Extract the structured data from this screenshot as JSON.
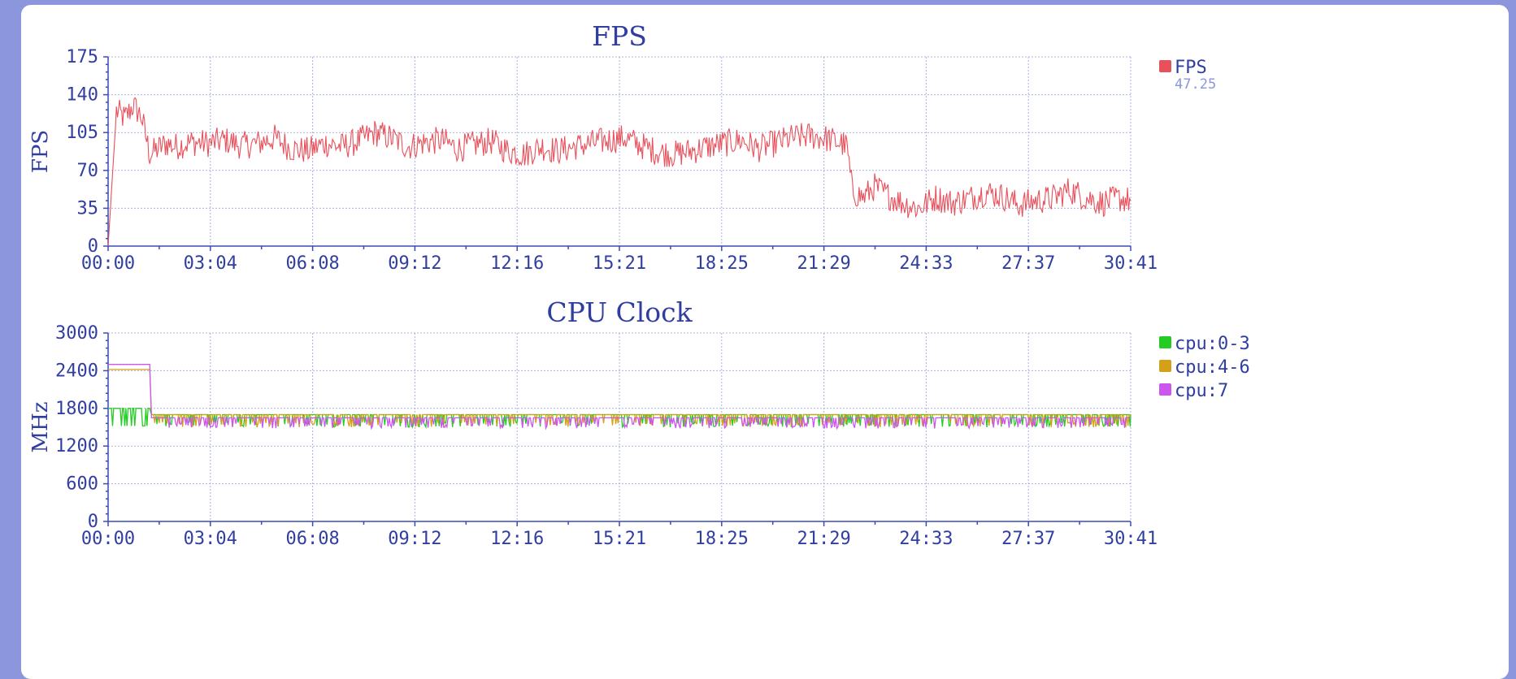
{
  "chart_data": [
    {
      "type": "line",
      "title": "FPS",
      "ylabel": "FPS",
      "xlabel": "",
      "x_ticks": [
        "00:00",
        "03:04",
        "06:08",
        "09:12",
        "12:16",
        "15:21",
        "18:25",
        "21:29",
        "24:33",
        "27:37",
        "30:41"
      ],
      "y_ticks": [
        "0",
        "35",
        "70",
        "105",
        "140",
        "175"
      ],
      "ylim": [
        0,
        175
      ],
      "xlim_seconds": [
        0,
        1841
      ],
      "grid": true,
      "legend_position": "right",
      "series": [
        {
          "name": "FPS",
          "color": "#e8505b",
          "legend_value": "47.25",
          "x": [
            0,
            15,
            30,
            45,
            60,
            75,
            90,
            105,
            120,
            150,
            180,
            210,
            240,
            270,
            300,
            330,
            360,
            390,
            420,
            450,
            480,
            510,
            540,
            570,
            600,
            630,
            660,
            690,
            720,
            750,
            780,
            810,
            840,
            870,
            900,
            930,
            960,
            990,
            1020,
            1050,
            1080,
            1110,
            1140,
            1170,
            1200,
            1230,
            1260,
            1290,
            1320,
            1330,
            1340,
            1360,
            1380,
            1400,
            1430,
            1460,
            1490,
            1520,
            1550,
            1580,
            1610,
            1640,
            1670,
            1700,
            1730,
            1760,
            1790,
            1820,
            1841
          ],
          "y": [
            0,
            125,
            118,
            130,
            120,
            85,
            90,
            95,
            92,
            96,
            95,
            98,
            93,
            95,
            100,
            90,
            88,
            95,
            92,
            97,
            105,
            100,
            92,
            96,
            98,
            90,
            94,
            97,
            88,
            85,
            92,
            88,
            92,
            95,
            98,
            100,
            93,
            87,
            85,
            88,
            92,
            95,
            98,
            90,
            95,
            100,
            102,
            100,
            95,
            92,
            50,
            45,
            55,
            48,
            40,
            35,
            45,
            40,
            44,
            50,
            46,
            38,
            42,
            44,
            52,
            45,
            40,
            44,
            42
          ]
        }
      ]
    },
    {
      "type": "line",
      "title": "CPU Clock",
      "ylabel": "MHz",
      "xlabel": "",
      "x_ticks": [
        "00:00",
        "03:04",
        "06:08",
        "09:12",
        "12:16",
        "15:21",
        "18:25",
        "21:29",
        "24:33",
        "27:37",
        "30:41"
      ],
      "y_ticks": [
        "0",
        "600",
        "1200",
        "1800",
        "2400",
        "3000"
      ],
      "ylim": [
        0,
        3000
      ],
      "xlim_seconds": [
        0,
        1841
      ],
      "grid": true,
      "legend_position": "right",
      "series": [
        {
          "name": "cpu:0-3",
          "color": "#22cc22",
          "x": [
            0,
            75,
            78,
            1841
          ],
          "y": [
            1800,
            1800,
            1700,
            1700
          ]
        },
        {
          "name": "cpu:4-6",
          "color": "#d4a017",
          "x": [
            0,
            75,
            78,
            1841
          ],
          "y": [
            2420,
            2420,
            1700,
            1700
          ]
        },
        {
          "name": "cpu:7",
          "color": "#cc55ee",
          "x": [
            0,
            75,
            78,
            1841
          ],
          "y": [
            2500,
            2500,
            1650,
            1650
          ]
        }
      ]
    }
  ]
}
